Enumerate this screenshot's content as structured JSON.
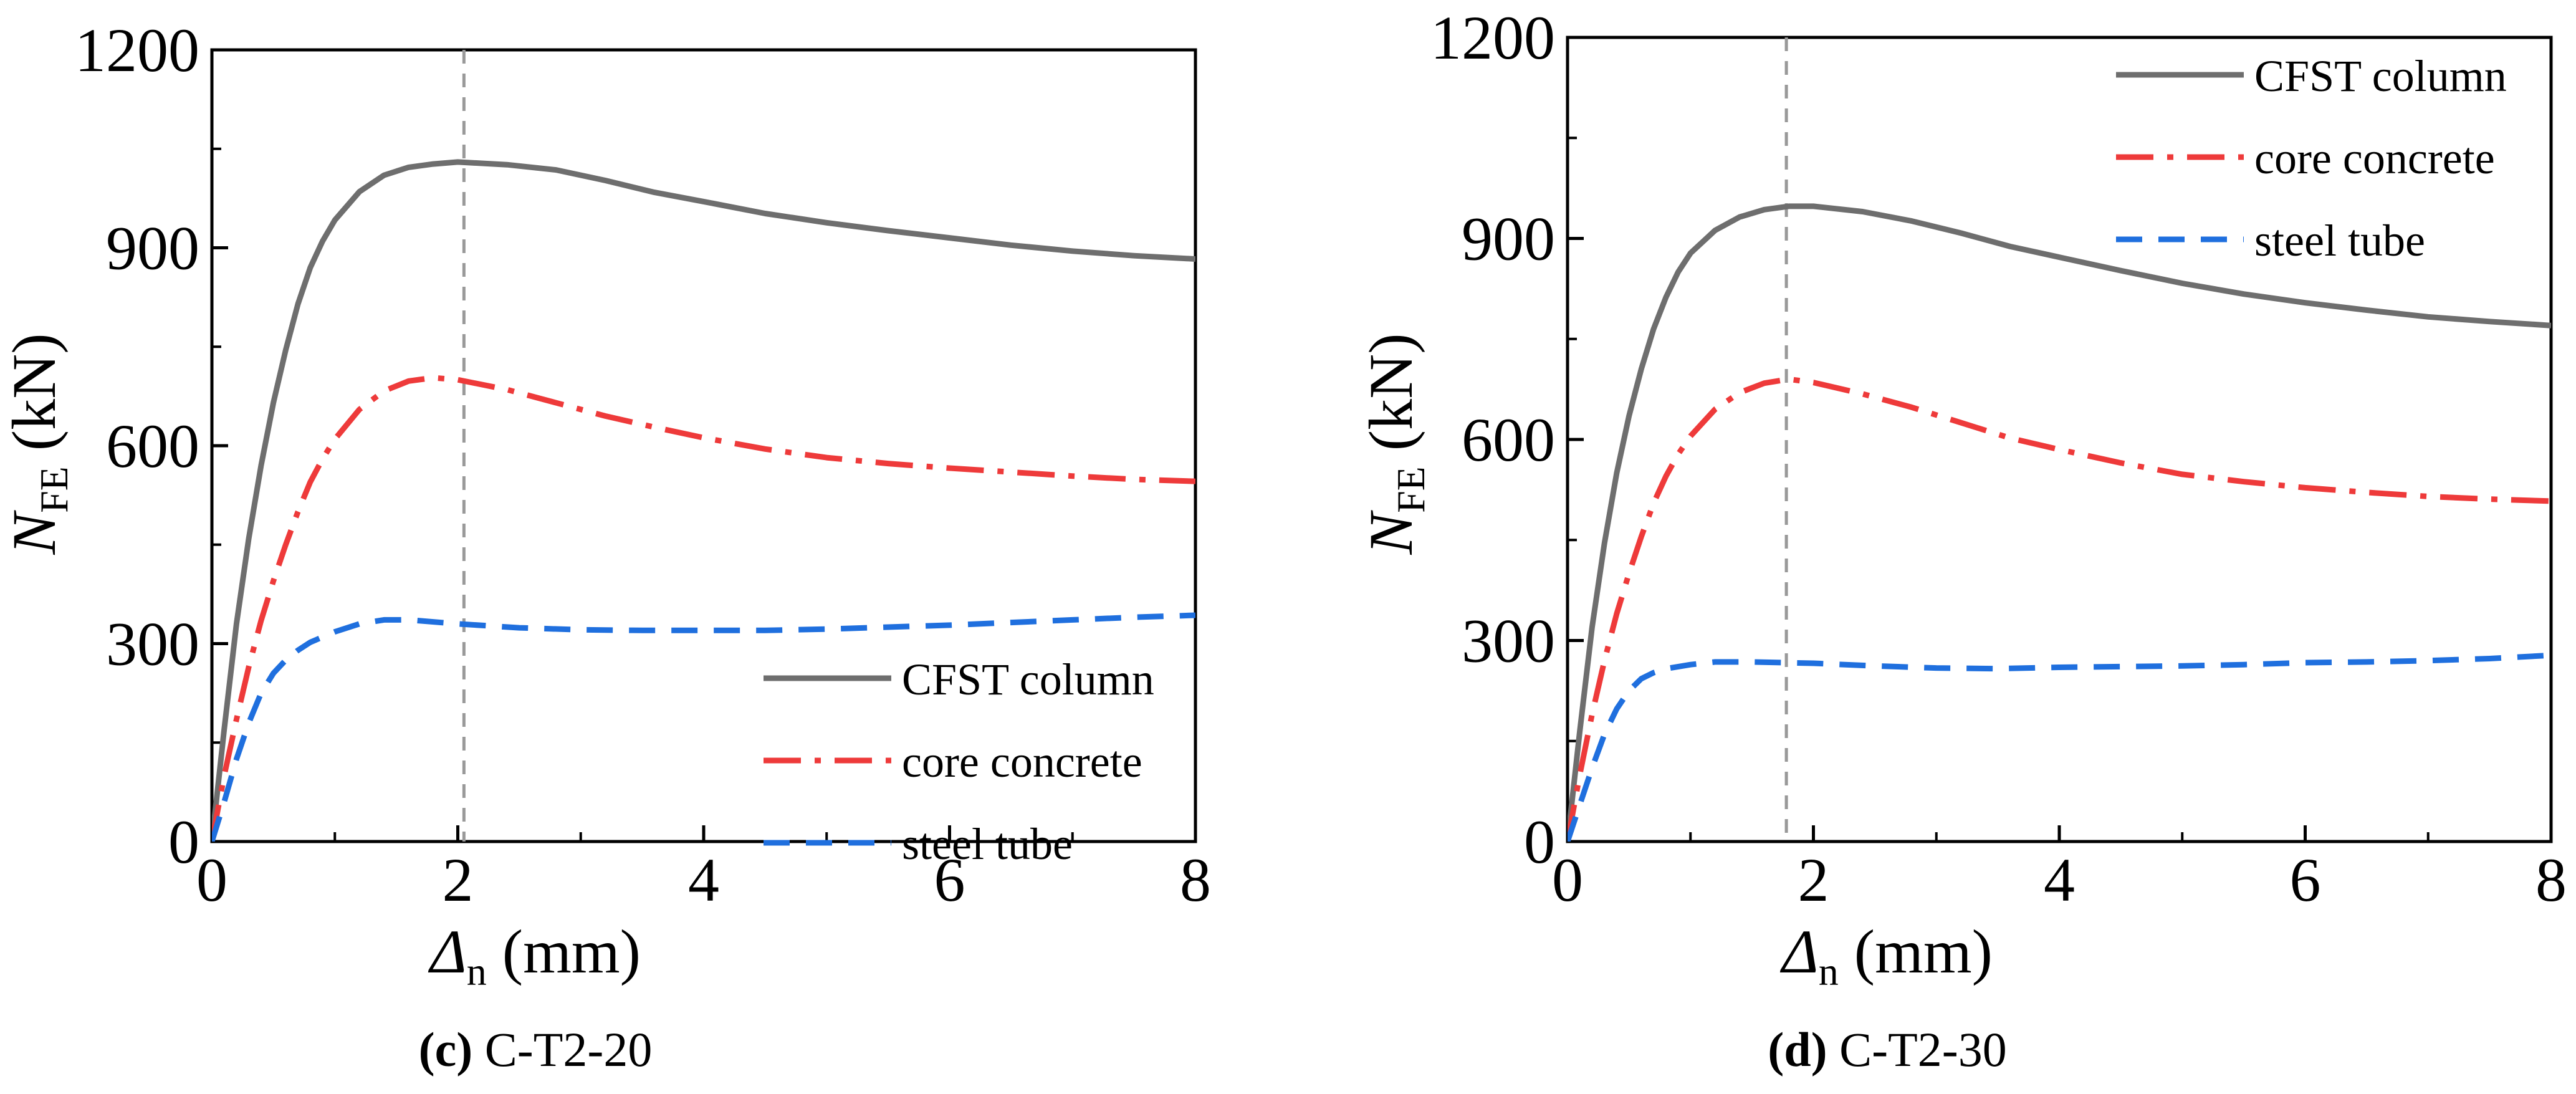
{
  "figure": {
    "panels": [
      {
        "caption_letter": "(c)",
        "caption_text": " C-T2-20",
        "xlabel_symbol": "Δ",
        "xlabel_sub": "n",
        "xlabel_unit": " (mm)",
        "ylabel_symbol": "N",
        "ylabel_sub": "FE",
        "ylabel_unit": " (kN)"
      },
      {
        "caption_letter": "(d)",
        "caption_text": " C-T2-30",
        "xlabel_symbol": "Δ",
        "xlabel_sub": "n",
        "xlabel_unit": " (mm)",
        "ylabel_symbol": "N",
        "ylabel_sub": "FE",
        "ylabel_unit": " (kN)"
      }
    ]
  },
  "chart_data": [
    {
      "type": "line",
      "title": "",
      "xlabel": "Δn (mm)",
      "ylabel": "NFE (kN)",
      "xlim": [
        0,
        8
      ],
      "ylim": [
        0,
        1200
      ],
      "xticks": [
        0,
        2,
        4,
        6,
        8
      ],
      "yticks": [
        0,
        300,
        600,
        900,
        1200
      ],
      "grid": false,
      "legend_position": "bottom-right",
      "peak_marker_x": 2.05,
      "series": [
        {
          "name": "CFST column",
          "color": "#6e6e6e",
          "dash": "solid",
          "points": [
            [
              0,
              0
            ],
            [
              0.1,
              170
            ],
            [
              0.2,
              330
            ],
            [
              0.3,
              460
            ],
            [
              0.4,
              570
            ],
            [
              0.5,
              665
            ],
            [
              0.6,
              745
            ],
            [
              0.7,
              815
            ],
            [
              0.8,
              870
            ],
            [
              0.9,
              910
            ],
            [
              1.0,
              942
            ],
            [
              1.2,
              985
            ],
            [
              1.4,
              1010
            ],
            [
              1.6,
              1022
            ],
            [
              1.8,
              1027
            ],
            [
              2.0,
              1030
            ],
            [
              2.4,
              1026
            ],
            [
              2.8,
              1018
            ],
            [
              3.2,
              1002
            ],
            [
              3.6,
              984
            ],
            [
              4.0,
              970
            ],
            [
              4.5,
              952
            ],
            [
              5.0,
              938
            ],
            [
              5.5,
              926
            ],
            [
              6.0,
              915
            ],
            [
              6.5,
              904
            ],
            [
              7.0,
              895
            ],
            [
              7.5,
              888
            ],
            [
              8.0,
              883
            ]
          ]
        },
        {
          "name": "core concrete",
          "color": "#ee3a3a",
          "dash": "dashdot",
          "points": [
            [
              0,
              0
            ],
            [
              0.1,
              100
            ],
            [
              0.2,
              185
            ],
            [
              0.3,
              265
            ],
            [
              0.4,
              335
            ],
            [
              0.5,
              395
            ],
            [
              0.6,
              450
            ],
            [
              0.7,
              500
            ],
            [
              0.8,
              545
            ],
            [
              0.9,
              580
            ],
            [
              1.0,
              610
            ],
            [
              1.2,
              655
            ],
            [
              1.4,
              683
            ],
            [
              1.6,
              698
            ],
            [
              1.8,
              703
            ],
            [
              2.0,
              700
            ],
            [
              2.4,
              685
            ],
            [
              2.8,
              665
            ],
            [
              3.2,
              645
            ],
            [
              3.6,
              628
            ],
            [
              4.0,
              612
            ],
            [
              4.5,
              595
            ],
            [
              5.0,
              582
            ],
            [
              5.5,
              573
            ],
            [
              6.0,
              566
            ],
            [
              6.5,
              560
            ],
            [
              7.0,
              554
            ],
            [
              7.5,
              549
            ],
            [
              8.0,
              546
            ]
          ]
        },
        {
          "name": "steel tube",
          "color": "#1f6fde",
          "dash": "dashed",
          "points": [
            [
              0,
              0
            ],
            [
              0.1,
              60
            ],
            [
              0.2,
              125
            ],
            [
              0.3,
              180
            ],
            [
              0.4,
              225
            ],
            [
              0.5,
              255
            ],
            [
              0.6,
              275
            ],
            [
              0.7,
              290
            ],
            [
              0.8,
              302
            ],
            [
              1.0,
              318
            ],
            [
              1.2,
              330
            ],
            [
              1.4,
              336
            ],
            [
              1.6,
              336
            ],
            [
              2.0,
              330
            ],
            [
              2.5,
              324
            ],
            [
              3.0,
              321
            ],
            [
              3.5,
              320
            ],
            [
              4.0,
              320
            ],
            [
              4.5,
              320
            ],
            [
              5.0,
              322
            ],
            [
              5.5,
              325
            ],
            [
              6.0,
              328
            ],
            [
              6.5,
              332
            ],
            [
              7.0,
              336
            ],
            [
              7.5,
              340
            ],
            [
              8.0,
              343
            ]
          ]
        }
      ]
    },
    {
      "type": "line",
      "title": "",
      "xlabel": "Δn (mm)",
      "ylabel": "NFE (kN)",
      "xlim": [
        0,
        8
      ],
      "ylim": [
        0,
        1200
      ],
      "xticks": [
        0,
        2,
        4,
        6,
        8
      ],
      "yticks": [
        0,
        300,
        600,
        900,
        1200
      ],
      "grid": false,
      "legend_position": "top-right",
      "peak_marker_x": 1.78,
      "series": [
        {
          "name": "CFST column",
          "color": "#6e6e6e",
          "dash": "solid",
          "points": [
            [
              0,
              0
            ],
            [
              0.1,
              165
            ],
            [
              0.2,
              320
            ],
            [
              0.3,
              445
            ],
            [
              0.4,
              550
            ],
            [
              0.5,
              635
            ],
            [
              0.6,
              705
            ],
            [
              0.7,
              765
            ],
            [
              0.8,
              812
            ],
            [
              0.9,
              850
            ],
            [
              1.0,
              878
            ],
            [
              1.2,
              912
            ],
            [
              1.4,
              932
            ],
            [
              1.6,
              943
            ],
            [
              1.8,
              948
            ],
            [
              2.0,
              948
            ],
            [
              2.4,
              940
            ],
            [
              2.8,
              926
            ],
            [
              3.2,
              908
            ],
            [
              3.6,
              888
            ],
            [
              4.0,
              872
            ],
            [
              4.5,
              852
            ],
            [
              5.0,
              833
            ],
            [
              5.5,
              817
            ],
            [
              6.0,
              804
            ],
            [
              6.5,
              793
            ],
            [
              7.0,
              783
            ],
            [
              7.5,
              776
            ],
            [
              8.0,
              770
            ]
          ]
        },
        {
          "name": "core concrete",
          "color": "#ee3a3a",
          "dash": "dashdot",
          "points": [
            [
              0,
              0
            ],
            [
              0.1,
              100
            ],
            [
              0.2,
              190
            ],
            [
              0.3,
              270
            ],
            [
              0.4,
              340
            ],
            [
              0.5,
              400
            ],
            [
              0.6,
              455
            ],
            [
              0.7,
              505
            ],
            [
              0.8,
              545
            ],
            [
              0.9,
              578
            ],
            [
              1.0,
              605
            ],
            [
              1.2,
              645
            ],
            [
              1.4,
              670
            ],
            [
              1.6,
              684
            ],
            [
              1.8,
              690
            ],
            [
              2.0,
              685
            ],
            [
              2.4,
              668
            ],
            [
              2.8,
              648
            ],
            [
              3.2,
              625
            ],
            [
              3.6,
              602
            ],
            [
              4.0,
              585
            ],
            [
              4.5,
              565
            ],
            [
              5.0,
              548
            ],
            [
              5.5,
              537
            ],
            [
              6.0,
              528
            ],
            [
              6.5,
              521
            ],
            [
              7.0,
              515
            ],
            [
              7.5,
              511
            ],
            [
              8.0,
              508
            ]
          ]
        },
        {
          "name": "steel tube",
          "color": "#1f6fde",
          "dash": "dashed",
          "points": [
            [
              0,
              0
            ],
            [
              0.1,
              55
            ],
            [
              0.2,
              110
            ],
            [
              0.3,
              160
            ],
            [
              0.4,
              198
            ],
            [
              0.5,
              225
            ],
            [
              0.6,
              243
            ],
            [
              0.7,
              252
            ],
            [
              0.8,
              258
            ],
            [
              1.0,
              264
            ],
            [
              1.2,
              268
            ],
            [
              1.5,
              268
            ],
            [
              2.0,
              266
            ],
            [
              2.5,
              262
            ],
            [
              3.0,
              259
            ],
            [
              3.5,
              258
            ],
            [
              4.0,
              260
            ],
            [
              4.5,
              261
            ],
            [
              5.0,
              262
            ],
            [
              5.5,
              264
            ],
            [
              6.0,
              267
            ],
            [
              6.5,
              268
            ],
            [
              7.0,
              270
            ],
            [
              7.5,
              273
            ],
            [
              8.0,
              278
            ]
          ]
        }
      ]
    }
  ]
}
